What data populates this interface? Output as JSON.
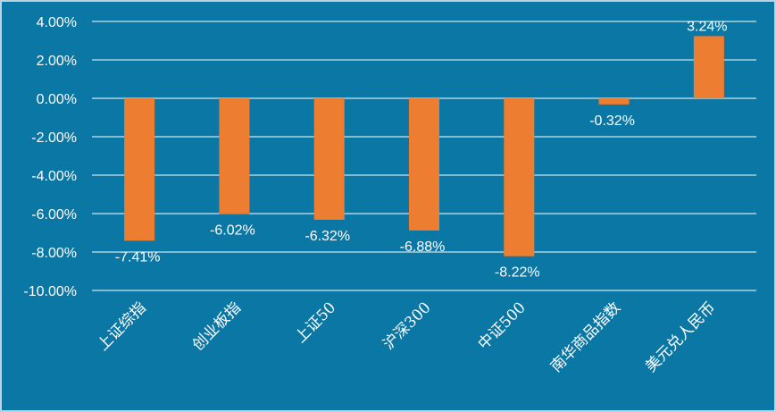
{
  "chart_data": {
    "type": "bar",
    "categories": [
      "上证综指",
      "创业板指",
      "上证50",
      "沪深300",
      "中证500",
      "南华商品指数",
      "美元兑人民币"
    ],
    "values": [
      -7.41,
      -6.02,
      -6.32,
      -6.88,
      -8.22,
      -0.32,
      3.24
    ],
    "value_labels": [
      "-7.41%",
      "-6.02%",
      "-6.32%",
      "-6.88%",
      "-8.22%",
      "-0.32%",
      "3.24%"
    ],
    "y_ticks": [
      "4.00%",
      "2.00%",
      "0.00%",
      "-2.00%",
      "-4.00%",
      "-6.00%",
      "-8.00%",
      "-10.00%"
    ],
    "ylim": [
      -10,
      4
    ],
    "grid": true,
    "legend": "none",
    "colors": {
      "background": "#0a77a5",
      "bar": "#ed7d31",
      "gridline": "#ffffff",
      "text": "#ffffff"
    }
  }
}
